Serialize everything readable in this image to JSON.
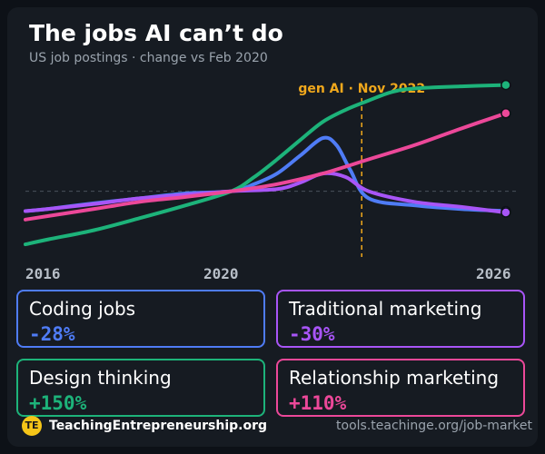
{
  "header": {
    "title": "The jobs AI can’t do",
    "subtitle": "US job postings · change vs Feb 2020"
  },
  "chart_data": {
    "type": "line",
    "title": "The jobs AI can’t do",
    "subtitle": "US job postings · change vs Feb 2020",
    "xlabel": "",
    "ylabel": "",
    "x_ticks": [
      "2016",
      "2020",
      "2026"
    ],
    "xlim": [
      2015.5,
      2026.3
    ],
    "ylim": [
      -80,
      170
    ],
    "grid": false,
    "baseline_dashed": true,
    "annotations": [
      {
        "x": 2022.85,
        "label": "gen AI · Nov 2022",
        "color": "#f0a81c"
      }
    ],
    "series": [
      {
        "name": "Coding jobs",
        "color": "#4f7cf6",
        "x": [
          2015.5,
          2016,
          2017,
          2018,
          2019,
          2020,
          2020.5,
          2021,
          2021.5,
          2022,
          2022.3,
          2022.6,
          2023,
          2024,
          2025,
          2026
        ],
        "y": [
          -28,
          -25,
          -17,
          -10,
          -3,
          0,
          10,
          25,
          50,
          75,
          65,
          30,
          -10,
          -20,
          -25,
          -28
        ],
        "end_label": "-28%"
      },
      {
        "name": "Traditional marketing",
        "color": "#a855f7",
        "x": [
          2015.5,
          2016,
          2017,
          2018,
          2019,
          2020,
          2021,
          2021.5,
          2022,
          2022.5,
          2023,
          2024,
          2025,
          2026
        ],
        "y": [
          -28,
          -25,
          -18,
          -10,
          -5,
          0,
          3,
          12,
          25,
          20,
          0,
          -15,
          -22,
          -30
        ],
        "end_label": "-30%"
      },
      {
        "name": "Design thinking",
        "color": "#1db37a",
        "x": [
          2015.5,
          2016,
          2017,
          2018,
          2019,
          2020,
          2020.5,
          2021,
          2021.5,
          2022,
          2022.5,
          2023,
          2023.5,
          2024,
          2025,
          2026
        ],
        "y": [
          -75,
          -68,
          -55,
          -38,
          -20,
          0,
          20,
          45,
          72,
          98,
          115,
          128,
          140,
          145,
          148,
          150
        ],
        "end_label": "+150%"
      },
      {
        "name": "Relationship marketing",
        "color": "#ec4899",
        "x": [
          2015.5,
          2016,
          2017,
          2018,
          2019,
          2020,
          2021,
          2022,
          2023,
          2024,
          2025,
          2026
        ],
        "y": [
          -40,
          -35,
          -25,
          -15,
          -8,
          0,
          10,
          25,
          45,
          65,
          88,
          110
        ],
        "end_label": "+110%"
      }
    ]
  },
  "cards": [
    {
      "label": "Coding jobs",
      "value": "-28%",
      "color": "#4f7cf6"
    },
    {
      "label": "Traditional marketing",
      "value": "-30%",
      "color": "#a855f7"
    },
    {
      "label": "Design thinking",
      "value": "+150%",
      "color": "#1db37a"
    },
    {
      "label": "Relationship marketing",
      "value": "+110%",
      "color": "#ec4899"
    }
  ],
  "footer": {
    "logo_text": "TE",
    "brand": "TeachingEntrepreneurship.org",
    "url": "tools.teachinge.org/job-market"
  }
}
